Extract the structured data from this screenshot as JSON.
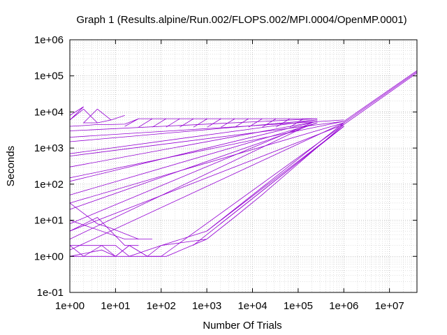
{
  "chart_data": {
    "type": "line",
    "title": "Graph 1 (Results.alpine/Run.002/FLOPS.002/MPI.0004/OpenMP.0001)",
    "xlabel": "Number Of Trials",
    "ylabel": "Seconds",
    "xscale": "log",
    "yscale": "log",
    "xlim": [
      1,
      40000000
    ],
    "ylim": [
      0.1,
      1000000
    ],
    "x_ticks": [
      {
        "value": 1,
        "label": "1e+00"
      },
      {
        "value": 10,
        "label": "1e+01"
      },
      {
        "value": 100,
        "label": "1e+02"
      },
      {
        "value": 1000,
        "label": "1e+03"
      },
      {
        "value": 10000,
        "label": "1e+04"
      },
      {
        "value": 100000,
        "label": "1e+05"
      },
      {
        "value": 1000000,
        "label": "1e+06"
      },
      {
        "value": 10000000,
        "label": "1e+07"
      }
    ],
    "y_ticks": [
      {
        "value": 0.1,
        "label": "1e-01"
      },
      {
        "value": 1,
        "label": "1e+00"
      },
      {
        "value": 10,
        "label": "1e+01"
      },
      {
        "value": 100,
        "label": "1e+02"
      },
      {
        "value": 1000,
        "label": "1e+03"
      },
      {
        "value": 10000,
        "label": "1e+04"
      },
      {
        "value": 100000,
        "label": "1e+05"
      },
      {
        "value": 1000000,
        "label": "1e+06"
      }
    ],
    "grid": true,
    "series_color": "#9400d3",
    "series": [
      {
        "x": [
          1,
          2,
          1,
          2,
          4,
          2,
          4,
          8,
          4,
          8,
          16
        ],
        "y": [
          8000,
          14000,
          6000,
          12000,
          5000,
          5000,
          12000,
          6000,
          5000,
          6000,
          8000
        ]
      },
      {
        "x": [
          1,
          2,
          4,
          8,
          16,
          32,
          16,
          32,
          64,
          32,
          64,
          128,
          64,
          128,
          256,
          128,
          256,
          512,
          256,
          512,
          1024,
          512,
          1024,
          2048,
          1024,
          2048,
          4096,
          2048,
          4096,
          8192,
          4096,
          8192,
          16384,
          8192,
          16384,
          32768,
          16384,
          32768,
          65536,
          32768,
          65536,
          131072,
          65536,
          131072,
          262144
        ],
        "y": [
          4000,
          4200,
          4500,
          4500,
          4600,
          6500,
          4000,
          6500,
          6500,
          3800,
          6500,
          6500,
          3800,
          6500,
          6500,
          3800,
          6500,
          6500,
          3800,
          6500,
          6500,
          3800,
          6500,
          6500,
          3800,
          6500,
          6500,
          3800,
          6500,
          6500,
          3800,
          6500,
          6500,
          3800,
          6500,
          6500,
          3800,
          6500,
          6500,
          3800,
          6500,
          6500,
          3800,
          6500,
          6500
        ]
      },
      {
        "x": [
          1,
          262144
        ],
        "y": [
          3000,
          6500
        ]
      },
      {
        "x": [
          1,
          262144
        ],
        "y": [
          1500,
          6000
        ]
      },
      {
        "x": [
          1,
          262144
        ],
        "y": [
          700,
          6000
        ]
      },
      {
        "x": [
          1,
          262144
        ],
        "y": [
          300,
          5500
        ]
      },
      {
        "x": [
          1,
          262144
        ],
        "y": [
          120,
          5500
        ]
      },
      {
        "x": [
          1,
          262144
        ],
        "y": [
          50,
          5000
        ]
      },
      {
        "x": [
          1,
          262144
        ],
        "y": [
          20,
          5000
        ]
      },
      {
        "x": [
          1,
          200000
        ],
        "y": [
          8,
          5000
        ]
      },
      {
        "x": [
          1,
          150000
        ],
        "y": [
          3,
          4000
        ]
      },
      {
        "x": [
          1,
          1000000
        ],
        "y": [
          2000,
          6000
        ]
      },
      {
        "x": [
          1,
          1000000
        ],
        "y": [
          600,
          5500
        ]
      },
      {
        "x": [
          1,
          1000000
        ],
        "y": [
          150,
          5500
        ]
      },
      {
        "x": [
          1,
          1000000
        ],
        "y": [
          30,
          5000
        ]
      },
      {
        "x": [
          1,
          1000000
        ],
        "y": [
          5,
          4500
        ]
      },
      {
        "x": [
          1,
          10,
          20,
          100,
          1000,
          1000000,
          40000000
        ],
        "y": [
          2,
          2,
          1,
          2,
          5,
          5000,
          130000
        ]
      },
      {
        "x": [
          1,
          5,
          10,
          20,
          50,
          100,
          1000
        ],
        "y": [
          1,
          1.5,
          1,
          2,
          1,
          2,
          3
        ]
      },
      {
        "x": [
          1,
          130,
          1000,
          4000,
          16000,
          1000000
        ],
        "y": [
          1,
          1,
          3,
          12,
          50,
          4500
        ]
      },
      {
        "x": [
          1,
          2,
          5,
          10,
          20,
          50,
          100
        ],
        "y": [
          2,
          1,
          2,
          1,
          2,
          1,
          1
        ]
      },
      {
        "x": [
          1,
          1000000
        ],
        "y": [
          1.5,
          5000
        ]
      },
      {
        "x": [
          100,
          1000000
        ],
        "y": [
          1,
          4500
        ]
      },
      {
        "x": [
          500,
          1000000
        ],
        "y": [
          2,
          4000
        ]
      },
      {
        "x": [
          1000,
          1000000
        ],
        "y": [
          5,
          4000
        ]
      },
      {
        "x": [
          2000,
          1000000
        ],
        "y": [
          8,
          4000
        ]
      },
      {
        "x": [
          1000000,
          40000000
        ],
        "y": [
          5500,
          140000
        ]
      },
      {
        "x": [
          1000000,
          40000000
        ],
        "y": [
          4500,
          120000
        ]
      },
      {
        "x": [
          1,
          16,
          64
        ],
        "y": [
          10,
          3,
          3
        ]
      },
      {
        "x": [
          1,
          4,
          16,
          32
        ],
        "y": [
          5,
          12,
          2,
          2
        ]
      },
      {
        "x": [
          1,
          4,
          8,
          32
        ],
        "y": [
          30,
          8,
          6,
          3
        ]
      }
    ]
  }
}
